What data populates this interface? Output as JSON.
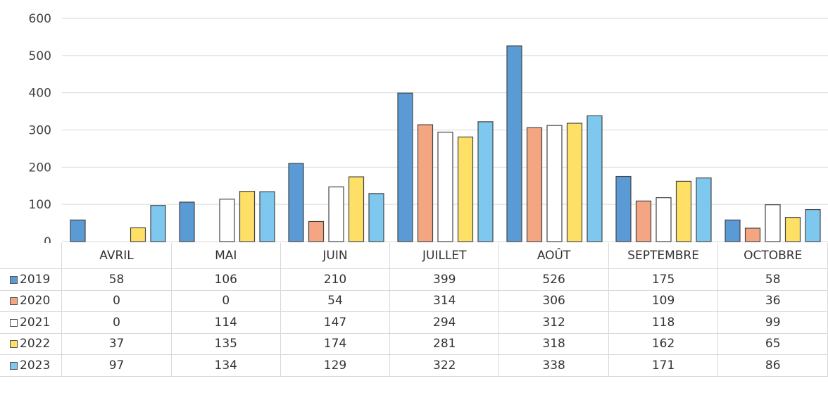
{
  "chart_data": {
    "type": "bar",
    "categories": [
      "AVRIL",
      "MAI",
      "JUIN",
      "JUILLET",
      "AOÛT",
      "SEPTEMBRE",
      "OCTOBRE"
    ],
    "series": [
      {
        "name": "2019",
        "values": [
          58,
          106,
          210,
          399,
          526,
          175,
          58
        ],
        "color": "#5b9bd5"
      },
      {
        "name": "2020",
        "values": [
          0,
          0,
          54,
          314,
          306,
          109,
          36
        ],
        "color": "#f4a582"
      },
      {
        "name": "2021",
        "values": [
          0,
          114,
          147,
          294,
          312,
          118,
          99
        ],
        "color": "#ffffff"
      },
      {
        "name": "2022",
        "values": [
          37,
          135,
          174,
          281,
          318,
          162,
          65
        ],
        "color": "#ffe066"
      },
      {
        "name": "2023",
        "values": [
          97,
          134,
          129,
          322,
          338,
          171,
          86
        ],
        "color": "#7ec8ef"
      }
    ],
    "yticks": [
      "0",
      "100",
      "200",
      "300",
      "400",
      "500",
      "600"
    ],
    "ylim": [
      0,
      600
    ],
    "grid": true,
    "legend": "data-table-rows",
    "title": "",
    "xlabel": "",
    "ylabel": ""
  }
}
